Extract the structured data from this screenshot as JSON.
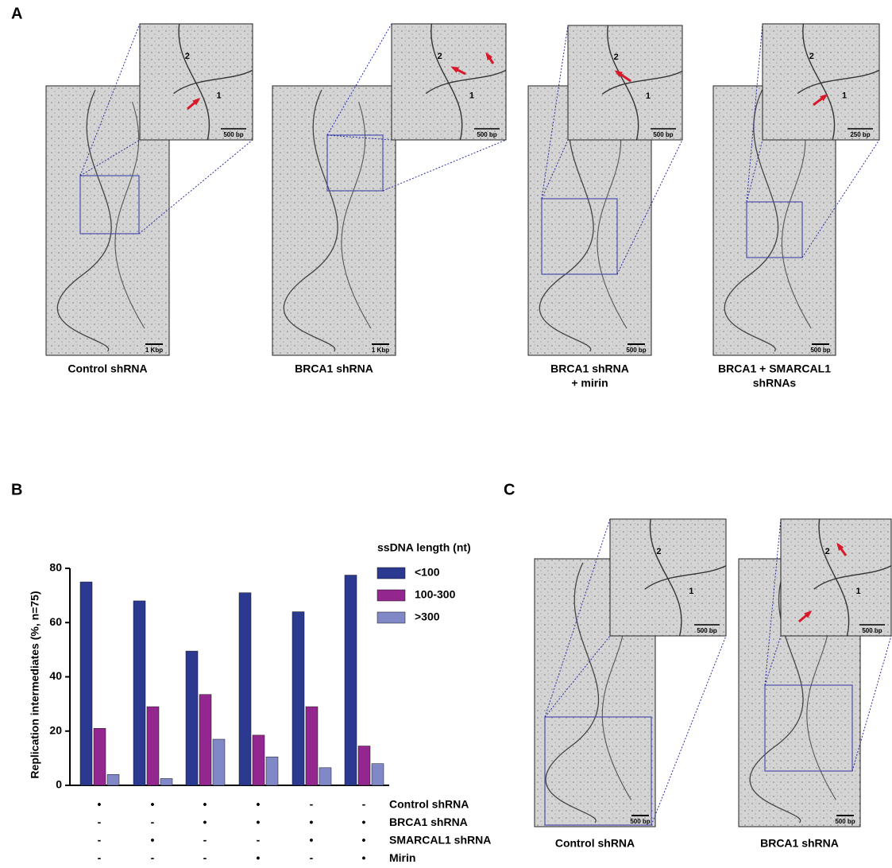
{
  "panel_labels": [
    "A",
    "B",
    "C"
  ],
  "panel_a": {
    "images": [
      {
        "caption": [
          "Control shRNA"
        ],
        "scale_bar": "1 Kbp",
        "inset_scale_bar": "500 bp",
        "inset_labels": [
          "2",
          "1"
        ]
      },
      {
        "caption": [
          "BRCA1 shRNA"
        ],
        "scale_bar": "1 Kbp",
        "inset_scale_bar": "500 bp",
        "inset_labels": [
          "2",
          "1"
        ]
      },
      {
        "caption": [
          "BRCA1 shRNA",
          "+ mirin"
        ],
        "scale_bar": "500 bp",
        "inset_scale_bar": "500 bp",
        "inset_labels": [
          "2",
          "1"
        ]
      },
      {
        "caption": [
          "BRCA1 + SMARCAL1",
          "shRNAs"
        ],
        "scale_bar": "500 bp",
        "inset_scale_bar": "250 bp",
        "inset_labels": [
          "2",
          "1"
        ]
      }
    ]
  },
  "panel_c": {
    "images": [
      {
        "caption": [
          "Control shRNA"
        ],
        "scale_bar": "500 bp",
        "inset_scale_bar": "500 bp",
        "inset_labels": [
          "2",
          "1"
        ]
      },
      {
        "caption": [
          "BRCA1 shRNA"
        ],
        "scale_bar": "500 bp",
        "inset_scale_bar": "500 bp",
        "inset_labels": [
          "2",
          "1"
        ]
      }
    ]
  },
  "chart_data": {
    "type": "bar",
    "ylabel": "Replication intermediates (%, n=75)",
    "legend_title": "ssDNA length (nt)",
    "categories": [
      null,
      null,
      null,
      null,
      null,
      null
    ],
    "series": [
      {
        "name": "<100",
        "color": "#2b3990",
        "values": [
          75,
          68,
          49.5,
          71,
          64,
          77.5
        ]
      },
      {
        "name": "100-300",
        "color": "#93278f",
        "values": [
          21,
          29,
          33.5,
          18.5,
          29,
          14.5
        ]
      },
      {
        "name": ">300",
        "color": "#8088c8",
        "values": [
          4,
          2.5,
          17,
          10.5,
          6.5,
          8
        ]
      }
    ],
    "ylim": [
      0,
      80
    ],
    "yticks": [
      0,
      20,
      40,
      60,
      80
    ],
    "grid": false,
    "conditions": [
      {
        "name": "Control shRNA",
        "marks": [
          "•",
          "•",
          "•",
          "•",
          "-",
          "-"
        ]
      },
      {
        "name": "BRCA1 shRNA",
        "marks": [
          "-",
          "-",
          "•",
          "•",
          "•",
          "•"
        ]
      },
      {
        "name": "SMARCAL1 shRNA",
        "marks": [
          "-",
          "•",
          "-",
          "-",
          "•",
          "•"
        ]
      },
      {
        "name": "Mirin",
        "marks": [
          "-",
          "-",
          "-",
          "•",
          "-",
          "•"
        ]
      }
    ]
  }
}
